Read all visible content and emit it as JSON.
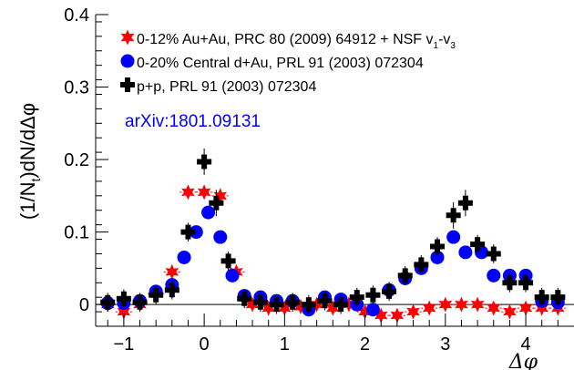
{
  "chart_data": {
    "type": "scatter",
    "title": "",
    "xlabel": "Δφ",
    "ylabel": "(1/N_t)dN/dΔφ",
    "xlim": [
      -1.35,
      4.6
    ],
    "ylim": [
      -0.03,
      0.4
    ],
    "xticks": [
      -1,
      0,
      1,
      2,
      3,
      4
    ],
    "xtick_labels": [
      "−1",
      "0",
      "1",
      "2",
      "3",
      "4"
    ],
    "yticks": [
      0,
      0.1,
      0.2,
      0.3,
      0.4
    ],
    "ytick_labels": [
      "0",
      "0.1",
      "0.2",
      "0.3",
      "0.4"
    ],
    "grid": false,
    "zero_line": true,
    "legend_position": "top-left",
    "annotation": "arXiv:1801.09131",
    "legend": [
      {
        "series": "auau",
        "marker": "star",
        "color": "#ff0000",
        "parts": [
          {
            "t": "0-12% Au+Au, PRC 80 (2009) 64912 + NSF v"
          },
          {
            "t": "1",
            "sub": true
          },
          {
            "t": "-v"
          },
          {
            "t": "3",
            "sub": true
          }
        ]
      },
      {
        "series": "dau",
        "marker": "circle",
        "color": "#0000ff",
        "parts": [
          {
            "t": "0-20% Central d+Au, PRL 91 (2003) 072304"
          }
        ]
      },
      {
        "series": "pp",
        "marker": "cross",
        "color": "#000000",
        "parts": [
          {
            "t": "p+p, PRL 91 (2003) 072304"
          }
        ]
      }
    ],
    "series": [
      {
        "id": "auau",
        "marker": "star",
        "color": "#ff0000",
        "x": [
          -1.2,
          -1.0,
          -0.8,
          -0.6,
          -0.4,
          -0.2,
          0.0,
          0.2,
          0.4,
          0.6,
          0.8,
          1.0,
          1.2,
          1.4,
          1.6,
          1.8,
          2.0,
          2.2,
          2.4,
          2.6,
          2.8,
          3.0,
          3.2,
          3.4,
          3.6,
          3.8,
          4.0,
          4.2,
          4.4
        ],
        "y": [
          0.0,
          -0.01,
          0.0,
          0.015,
          0.045,
          0.155,
          0.155,
          0.15,
          0.045,
          0.0,
          -0.005,
          -0.005,
          -0.003,
          0.0,
          -0.005,
          0.0,
          -0.01,
          -0.015,
          -0.015,
          -0.01,
          -0.005,
          0.0,
          0.0,
          0.0,
          -0.005,
          -0.01,
          -0.005,
          -0.005,
          -0.005
        ]
      },
      {
        "id": "dau",
        "marker": "circle",
        "color": "#0000ff",
        "x": [
          -1.2,
          -1.0,
          -0.8,
          -0.6,
          -0.4,
          -0.25,
          -0.1,
          0.05,
          0.2,
          0.35,
          0.5,
          0.7,
          0.9,
          1.1,
          1.3,
          1.5,
          1.7,
          1.9,
          2.1,
          2.3,
          2.5,
          2.7,
          2.9,
          3.1,
          3.25,
          3.45,
          3.6,
          3.8,
          4.0,
          4.2,
          4.4
        ],
        "y": [
          0.002,
          0.002,
          0.005,
          0.018,
          0.027,
          0.065,
          0.1,
          0.127,
          0.093,
          0.04,
          0.012,
          0.01,
          0.005,
          0.005,
          -0.007,
          0.01,
          0.007,
          0.0,
          -0.007,
          0.02,
          0.036,
          0.05,
          0.065,
          0.093,
          0.072,
          0.072,
          0.04,
          0.04,
          0.04,
          0.005,
          0.003
        ]
      },
      {
        "id": "pp",
        "marker": "cross",
        "color": "#000000",
        "x": [
          -1.2,
          -1.0,
          -0.8,
          -0.6,
          -0.4,
          -0.2,
          0.0,
          0.15,
          0.3,
          0.5,
          0.7,
          0.9,
          1.1,
          1.3,
          1.5,
          1.7,
          1.9,
          2.1,
          2.3,
          2.5,
          2.7,
          2.9,
          3.1,
          3.25,
          3.4,
          3.6,
          3.8,
          4.0,
          4.2,
          4.4
        ],
        "y": [
          0.003,
          0.008,
          0.003,
          0.013,
          0.02,
          0.1,
          0.197,
          0.14,
          0.06,
          0.008,
          0.003,
          0.0,
          0.003,
          0.0,
          0.005,
          0.0,
          0.01,
          0.013,
          0.018,
          0.04,
          0.055,
          0.08,
          0.123,
          0.14,
          0.083,
          0.07,
          0.03,
          0.03,
          0.01,
          0.01
        ]
      }
    ]
  }
}
